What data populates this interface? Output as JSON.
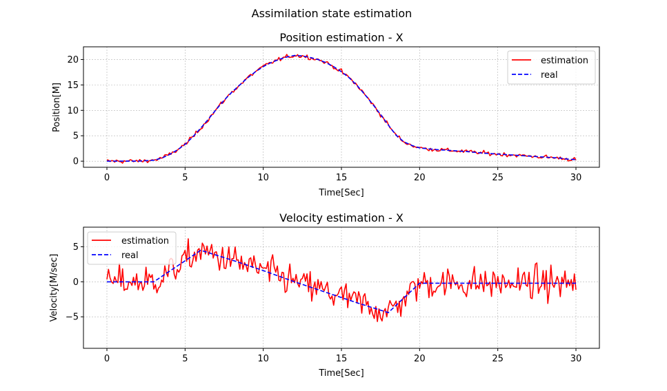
{
  "figure": {
    "suptitle": "Assimilation state estimation"
  },
  "chart_data": [
    {
      "type": "line",
      "title": "Position estimation - X",
      "xlabel": "Time[Sec]",
      "ylabel": "Position[M]",
      "xlim": [
        -1.5,
        31.5
      ],
      "ylim": [
        -1.2,
        22.5
      ],
      "xticks": [
        0,
        5,
        10,
        15,
        20,
        25,
        30
      ],
      "xtick_labels": [
        "0",
        "5",
        "10",
        "15",
        "20",
        "25",
        "30"
      ],
      "yticks": [
        0,
        5,
        10,
        15,
        20
      ],
      "ytick_labels": [
        "0",
        "5",
        "10",
        "15",
        "20"
      ],
      "grid": true,
      "legend_position": "upper-right",
      "noise_step": 0.1,
      "series": [
        {
          "name": "estimation",
          "color": "#ff0000",
          "style": "solid",
          "noise": 0.28,
          "x": [
            0,
            1,
            2,
            3,
            3.5,
            4,
            4.5,
            5,
            5.5,
            6,
            6.5,
            7,
            7.5,
            8,
            8.5,
            9,
            9.5,
            10,
            10.5,
            11,
            11.5,
            12,
            12.5,
            13,
            13.5,
            14,
            14.5,
            15,
            15.5,
            16,
            16.5,
            17,
            17.5,
            18,
            18.5,
            19,
            19.5,
            20,
            21,
            22,
            23,
            24,
            25,
            26,
            27,
            28,
            29,
            29.5,
            30
          ],
          "y": [
            0,
            0,
            0,
            0.2,
            0.6,
            1.3,
            2.2,
            3.3,
            4.8,
            6.5,
            8.3,
            10.2,
            12,
            13.6,
            15,
            16.4,
            17.6,
            18.6,
            19.4,
            20,
            20.5,
            20.8,
            20.7,
            20.4,
            20,
            19.4,
            18.6,
            17.6,
            16.4,
            14.9,
            13.1,
            11.2,
            9.2,
            7.1,
            5.1,
            3.8,
            3.1,
            2.6,
            2.3,
            2.1,
            1.9,
            1.6,
            1.4,
            1.2,
            1,
            0.8,
            0.6,
            0.4,
            0.3
          ]
        },
        {
          "name": "real",
          "color": "#0000ff",
          "style": "dashed",
          "noise": 0,
          "x": [
            0,
            1,
            2,
            3,
            3.5,
            4,
            4.5,
            5,
            5.5,
            6,
            6.5,
            7,
            7.5,
            8,
            8.5,
            9,
            9.5,
            10,
            10.5,
            11,
            11.5,
            12,
            12.5,
            13,
            13.5,
            14,
            14.5,
            15,
            15.5,
            16,
            16.5,
            17,
            17.5,
            18,
            18.5,
            19,
            19.5,
            20,
            21,
            22,
            23,
            24,
            25,
            26,
            27,
            28,
            29,
            29.5,
            30
          ],
          "y": [
            0,
            0,
            0,
            0.2,
            0.6,
            1.3,
            2.2,
            3.3,
            4.8,
            6.5,
            8.3,
            10.2,
            12,
            13.6,
            15,
            16.4,
            17.6,
            18.6,
            19.4,
            20,
            20.5,
            20.8,
            20.7,
            20.4,
            20,
            19.4,
            18.6,
            17.6,
            16.4,
            14.9,
            13.1,
            11.2,
            9.2,
            7.1,
            5.1,
            3.8,
            3.1,
            2.6,
            2.3,
            2.1,
            1.9,
            1.6,
            1.4,
            1.2,
            1,
            0.8,
            0.6,
            0.4,
            0.3
          ]
        }
      ]
    },
    {
      "type": "line",
      "title": "Velocity estimation - X",
      "xlabel": "Time[Sec]",
      "ylabel": "Velocity[M/sec]",
      "xlim": [
        -1.5,
        31.5
      ],
      "ylim": [
        -9.5,
        7.8
      ],
      "xticks": [
        0,
        5,
        10,
        15,
        20,
        25,
        30
      ],
      "xtick_labels": [
        "0",
        "5",
        "10",
        "15",
        "20",
        "25",
        "30"
      ],
      "yticks": [
        -5,
        0,
        5
      ],
      "ytick_labels": [
        "−5",
        "0",
        "5"
      ],
      "grid": true,
      "legend_position": "upper-left",
      "noise_step": 0.1,
      "series": [
        {
          "name": "estimation",
          "color": "#ff0000",
          "style": "solid",
          "noise": 1.6,
          "x": [
            0,
            1,
            2,
            3,
            6,
            8,
            10,
            12,
            14,
            16,
            18,
            19,
            20,
            25,
            30
          ],
          "y": [
            0,
            0,
            0,
            0,
            4.4,
            3,
            1.6,
            0,
            -1.4,
            -2.9,
            -4.4,
            -2.4,
            -0.2,
            -0.2,
            -0.2
          ]
        },
        {
          "name": "real",
          "color": "#0000ff",
          "style": "dashed",
          "noise": 0,
          "x": [
            0,
            2,
            3,
            6,
            8,
            10,
            12,
            14,
            16,
            18,
            20,
            25,
            30
          ],
          "y": [
            0,
            0,
            0,
            4.5,
            3.1,
            1.6,
            0,
            -1.5,
            -3,
            -4.4,
            -0.2,
            -0.2,
            -0.2
          ]
        }
      ]
    }
  ]
}
